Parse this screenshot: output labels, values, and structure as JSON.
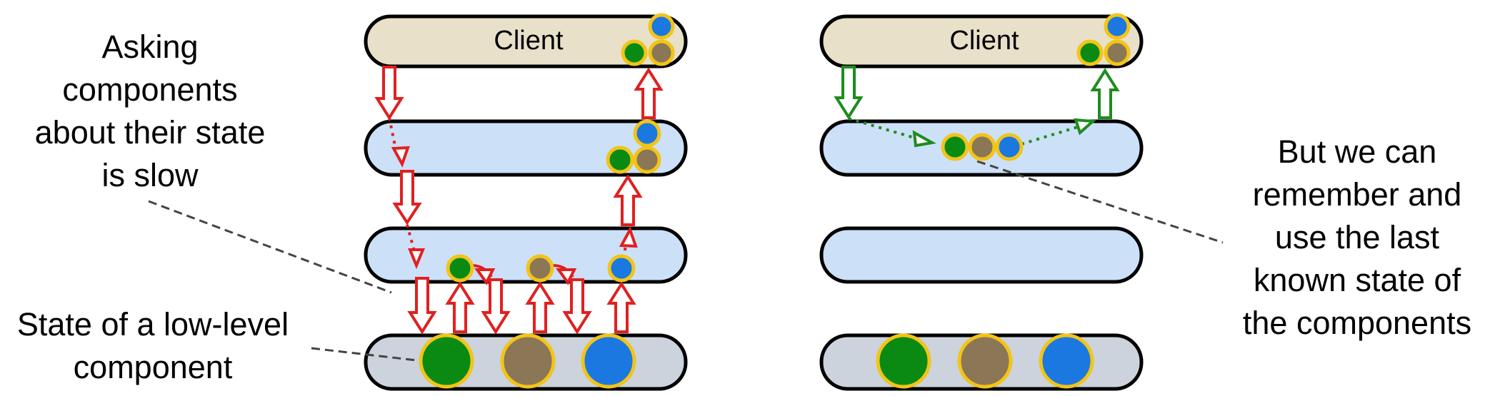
{
  "notes": {
    "asking_components": "Asking\ncomponents\nabout their state\nis slow",
    "state_low_level": "State of a low-level\ncomponent",
    "remember_last_state": "But we can\nremember and\nuse the last\nknown state of\nthe components"
  },
  "left_stack": {
    "client_label": "Client"
  },
  "right_stack": {
    "client_label": "Client"
  },
  "colors": {
    "client_fill": "#e8e0c8",
    "mid_layer_fill": "#cce0f8",
    "bottom_layer_fill": "#ccd3dc",
    "green": "#0a8a12",
    "brown": "#8b7755",
    "blue": "#1a78e0",
    "circle_border": "#f2c418",
    "slow_path": "#e02020",
    "cached_path": "#1e8c1e",
    "annotation_line": "#444444"
  }
}
